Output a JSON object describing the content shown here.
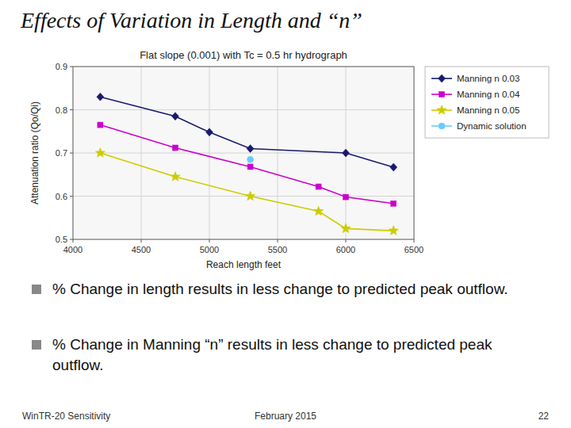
{
  "chart_data": {
    "type": "line",
    "title": "Effects of Variation in Length and “n”",
    "subtitle": "Flat slope (0.001) with Tc = 0.5 hr hydrograph",
    "x_label": "Reach length feet",
    "y_label": "Attenuation ratio (Qo/Qi)",
    "xlim": [
      4000,
      6500
    ],
    "ylim": [
      0.5,
      0.9
    ],
    "xticks": [
      4000,
      4500,
      5000,
      5500,
      6000,
      6500
    ],
    "yticks": [
      0.5,
      0.6,
      0.7,
      0.8,
      0.9
    ],
    "grid": true,
    "legend": "right",
    "series": [
      {
        "name": "Manning n 0.03",
        "color": "#1a1a6e",
        "marker": "diamond",
        "x": [
          4200,
          4750,
          5000,
          5300,
          6000,
          6350
        ],
        "values": [
          0.83,
          0.785,
          0.748,
          0.71,
          0.7,
          0.667
        ]
      },
      {
        "name": "Manning n 0.04",
        "color": "#cc00cc",
        "marker": "square",
        "x": [
          4200,
          4750,
          5300,
          5800,
          6000,
          6350
        ],
        "values": [
          0.765,
          0.712,
          0.668,
          0.622,
          0.598,
          0.583
        ]
      },
      {
        "name": "Manning n 0.05",
        "color": "#cccc00",
        "marker": "star",
        "x": [
          4200,
          4750,
          5300,
          5800,
          6000,
          6350
        ],
        "values": [
          0.7,
          0.645,
          0.6,
          0.565,
          0.525,
          0.52
        ]
      },
      {
        "name": "Dynamic solution",
        "color": "#66ccff",
        "marker": "circle",
        "x": [
          5300
        ],
        "values": [
          0.685
        ]
      }
    ],
    "annotations": [
      "% Change in length results in less change to predicted peak outflow.",
      "% Change in Manning “n” results in less change to predicted peak outflow."
    ],
    "footer": [
      "WinTR-20 Sensitivity",
      "February 2015",
      "22"
    ]
  }
}
